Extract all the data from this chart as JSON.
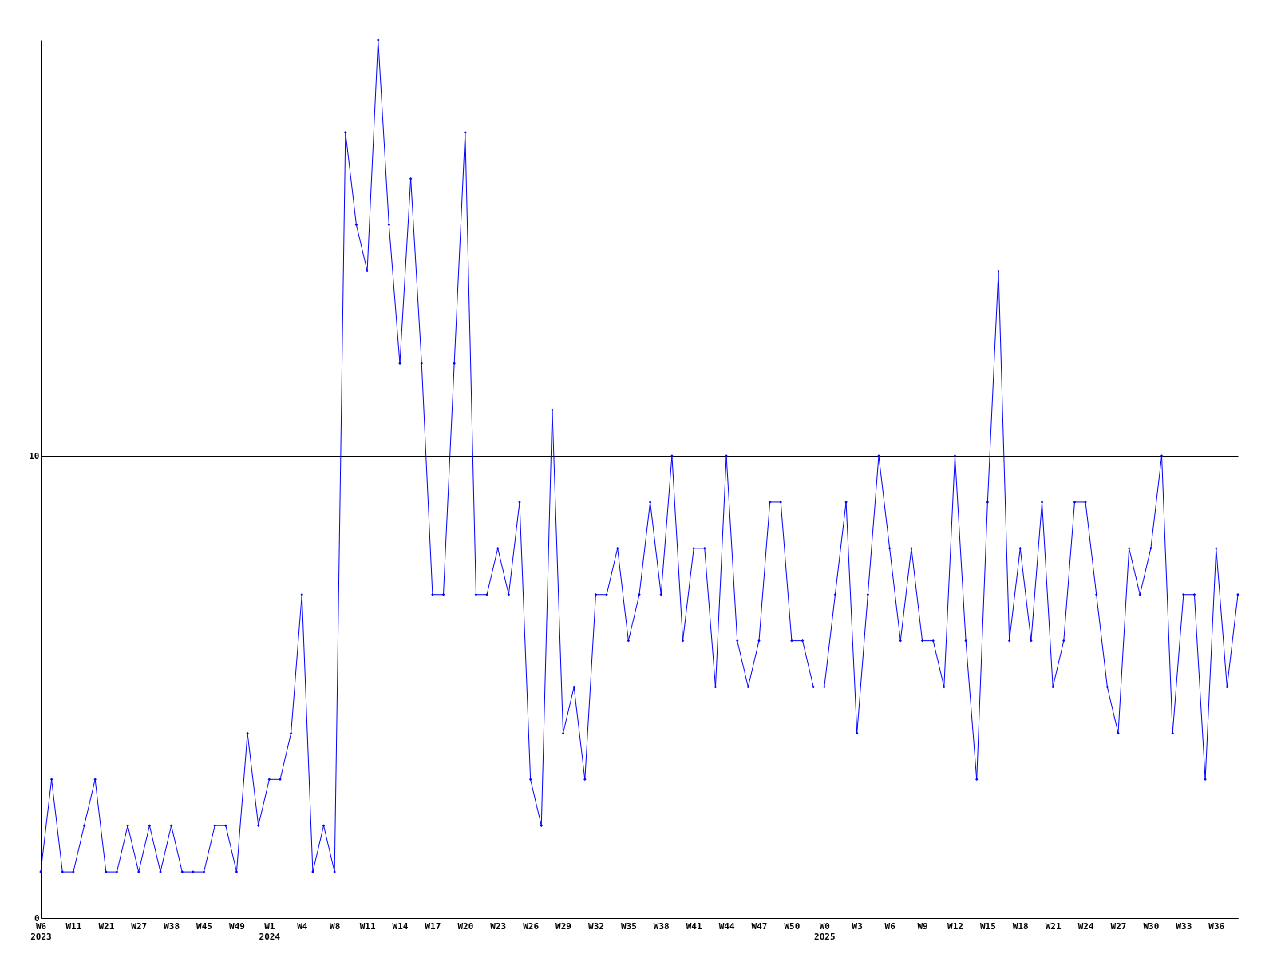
{
  "chart_data": {
    "type": "line",
    "categories": [
      "W6\n2023",
      null,
      null,
      "W11",
      null,
      null,
      "W21",
      null,
      null,
      "W27",
      null,
      null,
      "W38",
      null,
      null,
      "W45",
      null,
      null,
      "W49",
      null,
      null,
      "W1\n2024",
      null,
      null,
      "W4",
      null,
      null,
      "W8",
      null,
      null,
      "W11",
      null,
      null,
      "W14",
      null,
      null,
      "W17",
      null,
      null,
      "W20",
      null,
      null,
      "W23",
      null,
      null,
      "W26",
      null,
      null,
      "W29",
      null,
      null,
      "W32",
      null,
      null,
      "W35",
      null,
      null,
      "W38",
      null,
      null,
      "W41",
      null,
      null,
      "W44",
      null,
      null,
      "W47",
      null,
      null,
      "W50",
      null,
      null,
      "W0\n2025",
      null,
      null,
      "W3",
      null,
      null,
      "W6",
      null,
      null,
      "W9",
      null,
      null,
      "W12",
      null,
      null,
      "W15",
      null,
      null,
      "W18",
      null,
      null,
      "W21",
      null,
      null,
      "W24",
      null,
      null,
      "W27",
      null,
      null,
      "W30",
      null,
      null,
      "W33",
      null,
      null,
      "W36",
      null,
      null
    ],
    "series": [
      {
        "color": "#0000ff",
        "values": [
          1,
          3,
          1,
          1,
          2,
          3,
          1,
          1,
          2,
          1,
          2,
          1,
          2,
          1,
          1,
          1,
          2,
          2,
          1,
          4,
          2,
          3,
          3,
          4,
          7,
          1,
          2,
          1,
          17,
          15,
          14,
          19,
          15,
          12,
          16,
          12,
          7,
          7,
          12,
          17,
          7,
          7,
          8,
          7,
          9,
          3,
          2,
          11,
          4,
          5,
          3,
          7,
          7,
          8,
          6,
          7,
          9,
          7,
          10,
          6,
          8,
          8,
          5,
          10,
          6,
          5,
          6,
          9,
          9,
          6,
          6,
          5,
          5,
          7,
          9,
          4,
          7,
          10,
          8,
          6,
          8,
          6,
          6,
          5,
          10,
          6,
          3,
          9,
          14,
          6,
          8,
          6,
          9,
          5,
          6,
          9,
          9,
          7,
          5,
          4,
          8,
          7,
          8,
          10,
          4,
          7,
          7,
          3,
          8,
          5,
          7
        ]
      }
    ],
    "ylim": [
      0,
      19
    ],
    "yticks": [
      0,
      10
    ],
    "grid": "y",
    "marker": "diamond",
    "line_style": "solid"
  }
}
